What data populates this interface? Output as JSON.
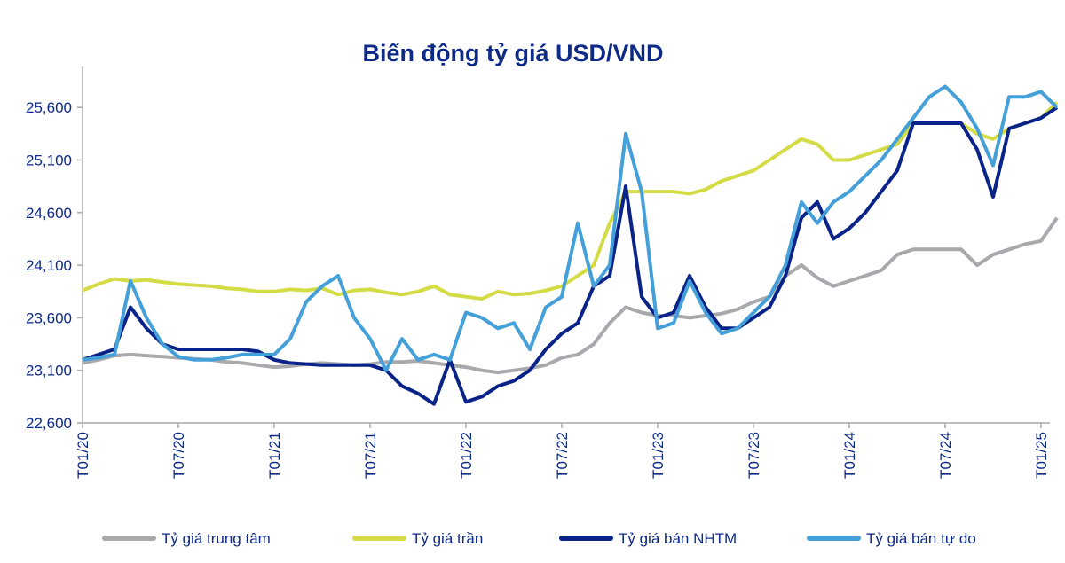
{
  "chart_data": {
    "type": "line",
    "title": "Biến động tỷ giá USD/VND",
    "xlabel": "",
    "ylabel": "",
    "ylim": [
      22600,
      26000
    ],
    "yticks": [
      "22,600",
      "23,100",
      "23,600",
      "24,100",
      "24,600",
      "25,100",
      "25,600"
    ],
    "ytick_values": [
      22600,
      23100,
      23600,
      24100,
      24600,
      25100,
      25600
    ],
    "xticks": [
      "T01/20",
      "T07/20",
      "T01/21",
      "T07/21",
      "T01/22",
      "T07/22",
      "T01/23",
      "T07/23",
      "T01/24",
      "T07/24",
      "T01/25"
    ],
    "x_start": "2020-01",
    "x_step": "month",
    "grid": false,
    "legend": "bottom",
    "series": [
      {
        "name": "Tỷ giá trung tâm",
        "color": "#a7a9ac",
        "values": [
          23170,
          23200,
          23240,
          23250,
          23240,
          23230,
          23220,
          23210,
          23200,
          23180,
          23170,
          23150,
          23130,
          23140,
          23160,
          23170,
          23160,
          23150,
          23160,
          23180,
          23180,
          23190,
          23170,
          23150,
          23130,
          23100,
          23080,
          23100,
          23120,
          23150,
          23220,
          23250,
          23350,
          23550,
          23700,
          23650,
          23620,
          23620,
          23600,
          23620,
          23640,
          23680,
          23750,
          23800,
          24000,
          24100,
          23980,
          23900,
          23950,
          24000,
          24050,
          24200,
          24250,
          24250,
          24250,
          24250,
          24100,
          24200,
          24250,
          24300,
          24330,
          24550
        ]
      },
      {
        "name": "Tỷ giá trần",
        "color": "#d4dc45",
        "values": [
          23860,
          23920,
          23970,
          23950,
          23960,
          23940,
          23920,
          23910,
          23900,
          23880,
          23870,
          23850,
          23850,
          23870,
          23860,
          23880,
          23820,
          23860,
          23870,
          23840,
          23820,
          23850,
          23900,
          23820,
          23800,
          23780,
          23850,
          23820,
          23830,
          23860,
          23900,
          24000,
          24100,
          24500,
          24800,
          24800,
          24800,
          24800,
          24780,
          24820,
          24900,
          24950,
          25000,
          25100,
          25200,
          25300,
          25250,
          25100,
          25100,
          25150,
          25200,
          25250,
          25450,
          25450,
          25450,
          25450,
          25350,
          25300,
          25400,
          25450,
          25500,
          25650
        ]
      },
      {
        "name": "Tỷ giá bán NHTM",
        "color": "#0a2389",
        "values": [
          23200,
          23250,
          23300,
          23700,
          23500,
          23350,
          23300,
          23300,
          23300,
          23300,
          23300,
          23280,
          23200,
          23170,
          23160,
          23150,
          23150,
          23150,
          23150,
          23100,
          22950,
          22880,
          22780,
          23200,
          22800,
          22850,
          22950,
          23000,
          23100,
          23300,
          23450,
          23550,
          23900,
          24000,
          24850,
          23800,
          23600,
          23650,
          24000,
          23700,
          23500,
          23500,
          23600,
          23700,
          24000,
          24550,
          24700,
          24350,
          24450,
          24600,
          24800,
          25000,
          25450,
          25450,
          25450,
          25450,
          25200,
          24750,
          25400,
          25450,
          25500,
          25600
        ]
      },
      {
        "name": "Tỷ giá bán tự do",
        "color": "#45a0d9",
        "values": [
          23200,
          23220,
          23250,
          23950,
          23600,
          23350,
          23230,
          23200,
          23200,
          23220,
          23250,
          23250,
          23250,
          23400,
          23750,
          23900,
          24000,
          23600,
          23400,
          23100,
          23400,
          23200,
          23250,
          23200,
          23650,
          23600,
          23500,
          23550,
          23300,
          23700,
          23800,
          24500,
          23900,
          24100,
          25350,
          24800,
          23500,
          23550,
          23950,
          23650,
          23450,
          23500,
          23650,
          23800,
          24100,
          24700,
          24500,
          24700,
          24800,
          24950,
          25100,
          25300,
          25500,
          25700,
          25800,
          25650,
          25400,
          25050,
          25700,
          25700,
          25750,
          25600
        ]
      }
    ]
  }
}
